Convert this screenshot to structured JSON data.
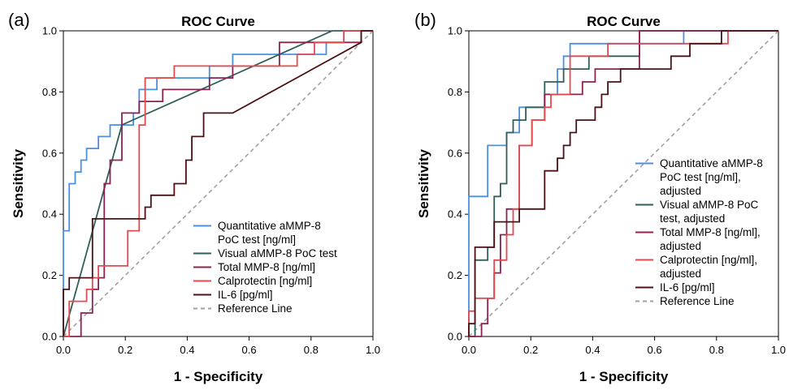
{
  "chart_data": [
    {
      "panel_label": "(a)",
      "type": "line",
      "title": "ROC Curve",
      "xlabel": "1 - Specificity",
      "ylabel": "Sensitivity",
      "xlim": [
        0,
        1
      ],
      "ylim": [
        0,
        1
      ],
      "x_ticks": [
        "0.0",
        "0.2",
        "0.4",
        "0.6",
        "0.8",
        "1.0"
      ],
      "y_ticks": [
        "0.0",
        "0.2",
        "0.4",
        "0.6",
        "0.8",
        "1.0"
      ],
      "legend_position": "bottom-right",
      "series": [
        {
          "name_lines": [
            "Quantitative aMMP-8",
            "PoC test [ng/ml]"
          ],
          "color": "#4a90e2",
          "dashed": false,
          "points": [
            [
              0,
              0
            ],
            [
              0,
              0.346
            ],
            [
              0.019,
              0.346
            ],
            [
              0.019,
              0.5
            ],
            [
              0.038,
              0.5
            ],
            [
              0.038,
              0.538
            ],
            [
              0.057,
              0.538
            ],
            [
              0.057,
              0.577
            ],
            [
              0.075,
              0.577
            ],
            [
              0.075,
              0.615
            ],
            [
              0.113,
              0.615
            ],
            [
              0.113,
              0.654
            ],
            [
              0.151,
              0.654
            ],
            [
              0.151,
              0.692
            ],
            [
              0.226,
              0.692
            ],
            [
              0.226,
              0.731
            ],
            [
              0.245,
              0.731
            ],
            [
              0.245,
              0.808
            ],
            [
              0.302,
              0.808
            ],
            [
              0.302,
              0.846
            ],
            [
              0.472,
              0.846
            ],
            [
              0.472,
              0.885
            ],
            [
              0.547,
              0.885
            ],
            [
              0.547,
              0.923
            ],
            [
              0.849,
              0.923
            ],
            [
              0.849,
              0.962
            ],
            [
              0.906,
              0.962
            ],
            [
              0.906,
              1
            ],
            [
              1,
              1
            ]
          ]
        },
        {
          "name_lines": [
            "Visual aMMP-8 PoC test"
          ],
          "color": "#2f5f5a",
          "dashed": false,
          "points": [
            [
              0,
              0
            ],
            [
              0.189,
              0.692
            ],
            [
              0.868,
              1
            ],
            [
              1,
              1
            ]
          ]
        },
        {
          "name_lines": [
            "Total MMP-8 [ng/ml]"
          ],
          "color": "#8b2252",
          "dashed": false,
          "points": [
            [
              0,
              0
            ],
            [
              0.057,
              0
            ],
            [
              0.057,
              0.077
            ],
            [
              0.094,
              0.077
            ],
            [
              0.094,
              0.154
            ],
            [
              0.113,
              0.154
            ],
            [
              0.113,
              0.192
            ],
            [
              0.132,
              0.192
            ],
            [
              0.132,
              0.5
            ],
            [
              0.151,
              0.5
            ],
            [
              0.151,
              0.577
            ],
            [
              0.189,
              0.577
            ],
            [
              0.189,
              0.731
            ],
            [
              0.245,
              0.731
            ],
            [
              0.245,
              0.769
            ],
            [
              0.321,
              0.769
            ],
            [
              0.321,
              0.808
            ],
            [
              0.472,
              0.808
            ],
            [
              0.472,
              0.846
            ],
            [
              0.547,
              0.846
            ],
            [
              0.547,
              0.885
            ],
            [
              0.698,
              0.885
            ],
            [
              0.698,
              0.962
            ],
            [
              0.962,
              0.962
            ],
            [
              0.962,
              1
            ],
            [
              1,
              1
            ]
          ]
        },
        {
          "name_lines": [
            "Calprotectin [ng/ml]"
          ],
          "color": "#e5484d",
          "dashed": false,
          "points": [
            [
              0,
              0
            ],
            [
              0.019,
              0
            ],
            [
              0.019,
              0.115
            ],
            [
              0.075,
              0.115
            ],
            [
              0.075,
              0.154
            ],
            [
              0.094,
              0.154
            ],
            [
              0.094,
              0.192
            ],
            [
              0.113,
              0.192
            ],
            [
              0.113,
              0.231
            ],
            [
              0.208,
              0.231
            ],
            [
              0.208,
              0.346
            ],
            [
              0.245,
              0.346
            ],
            [
              0.245,
              0.692
            ],
            [
              0.264,
              0.692
            ],
            [
              0.264,
              0.846
            ],
            [
              0.358,
              0.846
            ],
            [
              0.358,
              0.885
            ],
            [
              0.755,
              0.885
            ],
            [
              0.755,
              0.923
            ],
            [
              0.811,
              0.923
            ],
            [
              0.811,
              0.962
            ],
            [
              0.906,
              0.962
            ],
            [
              0.906,
              1
            ],
            [
              1,
              1
            ]
          ]
        },
        {
          "name_lines": [
            "IL-6 [pg/ml]"
          ],
          "color": "#4a1214",
          "dashed": false,
          "points": [
            [
              0,
              0
            ],
            [
              0,
              0.154
            ],
            [
              0.019,
              0.154
            ],
            [
              0.019,
              0.192
            ],
            [
              0.094,
              0.192
            ],
            [
              0.094,
              0.385
            ],
            [
              0.264,
              0.385
            ],
            [
              0.264,
              0.423
            ],
            [
              0.283,
              0.423
            ],
            [
              0.283,
              0.462
            ],
            [
              0.358,
              0.462
            ],
            [
              0.358,
              0.5
            ],
            [
              0.396,
              0.5
            ],
            [
              0.396,
              0.577
            ],
            [
              0.415,
              0.577
            ],
            [
              0.415,
              0.654
            ],
            [
              0.453,
              0.654
            ],
            [
              0.453,
              0.731
            ],
            [
              0.547,
              0.731
            ],
            [
              0.962,
              0.962
            ],
            [
              0.962,
              1
            ],
            [
              1,
              1
            ]
          ]
        },
        {
          "name_lines": [
            "Reference Line"
          ],
          "color": "#a0a0a0",
          "dashed": true,
          "points": [
            [
              0,
              0
            ],
            [
              1,
              1
            ]
          ]
        }
      ]
    },
    {
      "panel_label": "(b)",
      "type": "line",
      "title": "ROC Curve",
      "xlabel": "1 - Specificity",
      "ylabel": "Sensitivity",
      "xlim": [
        0,
        1
      ],
      "ylim": [
        0,
        1
      ],
      "x_ticks": [
        "0.0",
        "0.2",
        "0.4",
        "0.6",
        "0.8",
        "1.0"
      ],
      "y_ticks": [
        "0.0",
        "0.2",
        "0.4",
        "0.6",
        "0.8",
        "1.0"
      ],
      "legend_position": "right",
      "series": [
        {
          "name_lines": [
            "Quantitative aMMP-8",
            "PoC test [ng/ml],",
            "adjusted"
          ],
          "color": "#4a90e2",
          "dashed": false,
          "points": [
            [
              0,
              0
            ],
            [
              0,
              0.458
            ],
            [
              0.061,
              0.458
            ],
            [
              0.061,
              0.625
            ],
            [
              0.122,
              0.625
            ],
            [
              0.122,
              0.667
            ],
            [
              0.163,
              0.667
            ],
            [
              0.163,
              0.75
            ],
            [
              0.245,
              0.75
            ],
            [
              0.245,
              0.792
            ],
            [
              0.286,
              0.792
            ],
            [
              0.286,
              0.875
            ],
            [
              0.306,
              0.875
            ],
            [
              0.306,
              0.917
            ],
            [
              0.327,
              0.917
            ],
            [
              0.327,
              0.958
            ],
            [
              0.694,
              0.958
            ],
            [
              0.694,
              1
            ],
            [
              1,
              1
            ]
          ]
        },
        {
          "name_lines": [
            "Visual aMMP-8 PoC",
            "test, adjusted"
          ],
          "color": "#2f5f5a",
          "dashed": false,
          "points": [
            [
              0,
              0
            ],
            [
              0.02,
              0
            ],
            [
              0.02,
              0.25
            ],
            [
              0.061,
              0.25
            ],
            [
              0.061,
              0.292
            ],
            [
              0.082,
              0.292
            ],
            [
              0.082,
              0.458
            ],
            [
              0.102,
              0.458
            ],
            [
              0.102,
              0.5
            ],
            [
              0.122,
              0.5
            ],
            [
              0.122,
              0.667
            ],
            [
              0.143,
              0.667
            ],
            [
              0.143,
              0.708
            ],
            [
              0.184,
              0.708
            ],
            [
              0.184,
              0.75
            ],
            [
              0.245,
              0.75
            ],
            [
              0.245,
              0.833
            ],
            [
              0.306,
              0.833
            ],
            [
              0.306,
              0.875
            ],
            [
              0.388,
              0.875
            ],
            [
              0.388,
              0.917
            ],
            [
              0.551,
              0.917
            ],
            [
              0.551,
              1
            ],
            [
              1,
              1
            ]
          ]
        },
        {
          "name_lines": [
            "Total MMP-8 [ng/ml],",
            "adjusted"
          ],
          "color": "#8b2252",
          "dashed": false,
          "points": [
            [
              0,
              0
            ],
            [
              0.041,
              0
            ],
            [
              0.041,
              0.042
            ],
            [
              0.061,
              0.042
            ],
            [
              0.061,
              0.125
            ],
            [
              0.082,
              0.125
            ],
            [
              0.082,
              0.208
            ],
            [
              0.102,
              0.208
            ],
            [
              0.102,
              0.333
            ],
            [
              0.122,
              0.333
            ],
            [
              0.122,
              0.417
            ],
            [
              0.163,
              0.417
            ],
            [
              0.163,
              0.625
            ],
            [
              0.204,
              0.625
            ],
            [
              0.204,
              0.708
            ],
            [
              0.245,
              0.708
            ],
            [
              0.245,
              0.792
            ],
            [
              0.367,
              0.792
            ],
            [
              0.367,
              0.833
            ],
            [
              0.408,
              0.833
            ],
            [
              0.408,
              0.875
            ],
            [
              0.551,
              0.875
            ],
            [
              0.551,
              1
            ],
            [
              1,
              1
            ]
          ]
        },
        {
          "name_lines": [
            "Calprotectin [ng/ml],",
            "adjusted"
          ],
          "color": "#e5484d",
          "dashed": false,
          "points": [
            [
              0,
              0
            ],
            [
              0,
              0.083
            ],
            [
              0.02,
              0.083
            ],
            [
              0.02,
              0.125
            ],
            [
              0.082,
              0.125
            ],
            [
              0.082,
              0.25
            ],
            [
              0.122,
              0.25
            ],
            [
              0.122,
              0.333
            ],
            [
              0.143,
              0.333
            ],
            [
              0.143,
              0.417
            ],
            [
              0.163,
              0.417
            ],
            [
              0.163,
              0.625
            ],
            [
              0.204,
              0.625
            ],
            [
              0.204,
              0.708
            ],
            [
              0.245,
              0.708
            ],
            [
              0.245,
              0.75
            ],
            [
              0.265,
              0.75
            ],
            [
              0.265,
              0.792
            ],
            [
              0.327,
              0.792
            ],
            [
              0.327,
              0.917
            ],
            [
              0.449,
              0.917
            ],
            [
              0.449,
              0.958
            ],
            [
              0.837,
              0.958
            ],
            [
              0.837,
              1
            ],
            [
              1,
              1
            ]
          ]
        },
        {
          "name_lines": [
            "IL-6 [pg/ml]"
          ],
          "color": "#4a1214",
          "dashed": false,
          "points": [
            [
              0,
              0
            ],
            [
              0,
              0.042
            ],
            [
              0.02,
              0.042
            ],
            [
              0.02,
              0.292
            ],
            [
              0.082,
              0.292
            ],
            [
              0.082,
              0.375
            ],
            [
              0.163,
              0.375
            ],
            [
              0.163,
              0.417
            ],
            [
              0.245,
              0.417
            ],
            [
              0.245,
              0.542
            ],
            [
              0.286,
              0.542
            ],
            [
              0.286,
              0.583
            ],
            [
              0.306,
              0.583
            ],
            [
              0.306,
              0.625
            ],
            [
              0.327,
              0.625
            ],
            [
              0.327,
              0.667
            ],
            [
              0.347,
              0.667
            ],
            [
              0.347,
              0.708
            ],
            [
              0.408,
              0.708
            ],
            [
              0.408,
              0.75
            ],
            [
              0.429,
              0.75
            ],
            [
              0.429,
              0.792
            ],
            [
              0.449,
              0.792
            ],
            [
              0.449,
              0.833
            ],
            [
              0.49,
              0.833
            ],
            [
              0.49,
              0.875
            ],
            [
              0.653,
              0.875
            ],
            [
              0.653,
              0.917
            ],
            [
              0.714,
              0.917
            ],
            [
              0.714,
              0.958
            ],
            [
              0.816,
              0.958
            ],
            [
              0.816,
              1
            ],
            [
              1,
              1
            ]
          ]
        },
        {
          "name_lines": [
            "Reference Line"
          ],
          "color": "#a0a0a0",
          "dashed": true,
          "points": [
            [
              0,
              0
            ],
            [
              1,
              1
            ]
          ]
        }
      ]
    }
  ]
}
